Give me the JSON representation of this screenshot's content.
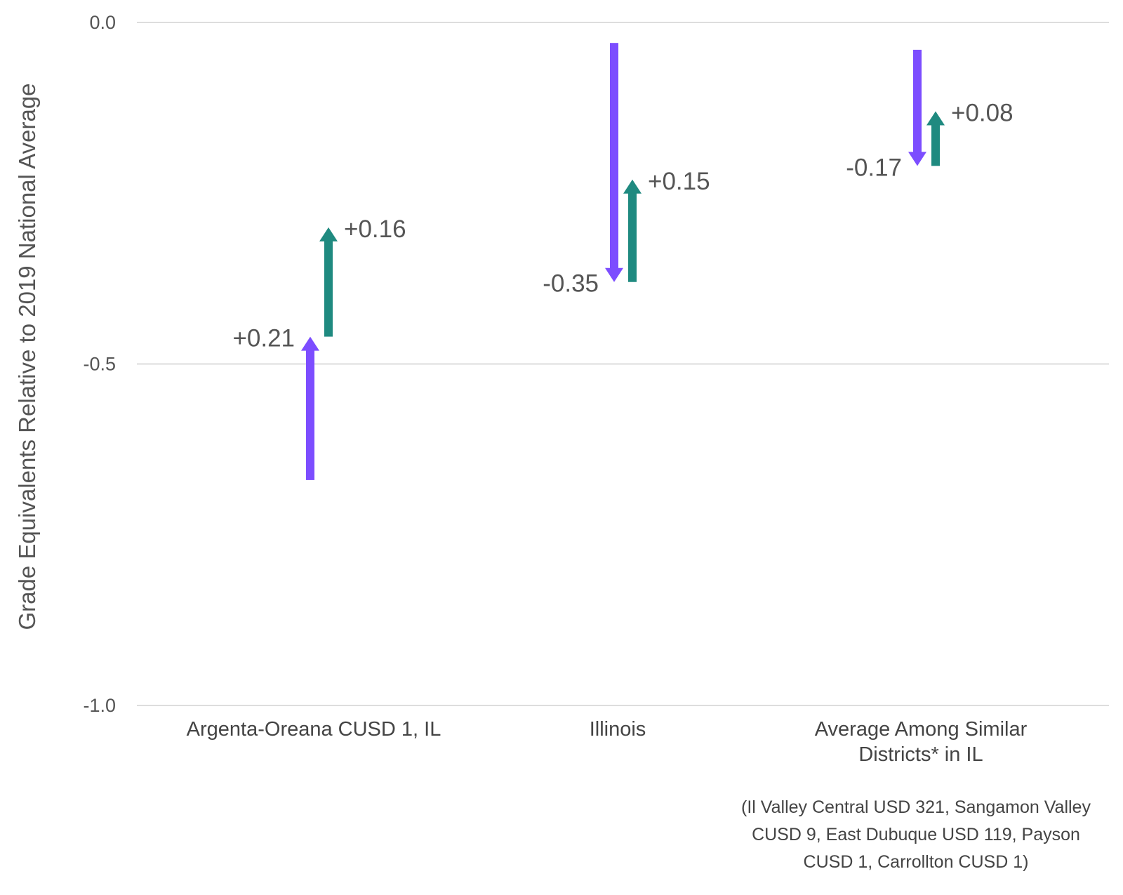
{
  "chart_data": {
    "type": "arrow",
    "ylabel": "Grade Equivalents Relative to 2019 National Average",
    "ylim": [
      -1.0,
      0.0
    ],
    "yticks": [
      {
        "value": 0.0,
        "label": "0.0"
      },
      {
        "value": -0.5,
        "label": "-0.5"
      },
      {
        "value": -1.0,
        "label": "-1.0"
      }
    ],
    "grid": true,
    "categories": [
      {
        "label_lines": [
          "Argenta-Oreana CUSD 1, IL"
        ],
        "arrows": [
          {
            "from": -0.67,
            "to": -0.46,
            "label": "+0.21",
            "color": "#7c4dff"
          },
          {
            "from": -0.46,
            "to": -0.3,
            "label": "+0.16",
            "color": "#1f8a80"
          }
        ]
      },
      {
        "label_lines": [
          "Illinois"
        ],
        "arrows": [
          {
            "from": -0.03,
            "to": -0.38,
            "label": "-0.35",
            "color": "#7c4dff"
          },
          {
            "from": -0.38,
            "to": -0.23,
            "label": "+0.15",
            "color": "#1f8a80"
          }
        ]
      },
      {
        "label_lines": [
          "Average Among Similar",
          "Districts* in IL"
        ],
        "arrows": [
          {
            "from": -0.04,
            "to": -0.21,
            "label": "-0.17",
            "color": "#7c4dff"
          },
          {
            "from": -0.21,
            "to": -0.13,
            "label": "+0.08",
            "color": "#1f8a80"
          }
        ]
      }
    ],
    "footnote_lines": [
      "(Il Valley Central USD 321, Sangamon Valley",
      "CUSD 9, East Dubuque USD 119, Payson",
      "CUSD 1, Carrollton CUSD 1)"
    ]
  }
}
